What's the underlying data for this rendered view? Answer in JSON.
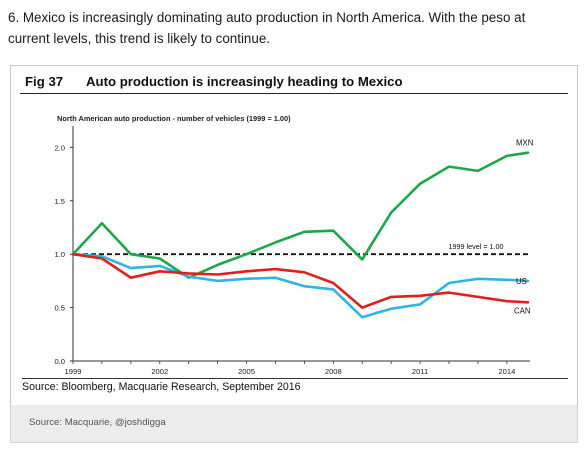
{
  "intro": {
    "line1": "6. Mexico is increasingly dominating auto production in North America. With the peso at",
    "line2": "current levels, this trend is likely to continue."
  },
  "figure": {
    "number": "Fig 37",
    "title": "Auto production is increasingly heading to Mexico",
    "source": "Source: Bloomberg, Macquarie Research, September 2016"
  },
  "footer": {
    "credit": "Source: Macquarie, @joshdigga"
  },
  "colors": {
    "MXN": "#1fa64b",
    "US": "#2eb5e6",
    "CAN": "#e0201b",
    "ref": "#111111"
  },
  "chart_data": {
    "type": "line",
    "title": "North American auto production - number of vehicles (1999 = 1.00)",
    "x": [
      1999,
      2000,
      2001,
      2002,
      2003,
      2004,
      2005,
      2006,
      2007,
      2008,
      2009,
      2010,
      2011,
      2012,
      2013,
      2014,
      2015
    ],
    "xticks": [
      "1999",
      "2002",
      "2005",
      "2008",
      "2011",
      "2014"
    ],
    "yticks": [
      "0.0",
      "0.5",
      "1.0",
      "1.5",
      "2.0"
    ],
    "ylim": [
      0,
      2.2
    ],
    "xlim": [
      1999,
      2014.8
    ],
    "reference": {
      "value": 1.0,
      "label": "1999 level = 1.00"
    },
    "series": [
      {
        "name": "MXN",
        "values": [
          1.0,
          1.29,
          1.0,
          0.96,
          0.78,
          0.9,
          1.0,
          1.11,
          1.21,
          1.22,
          0.95,
          1.39,
          1.66,
          1.82,
          1.78,
          1.92,
          1.95
        ]
      },
      {
        "name": "US",
        "values": [
          1.0,
          0.98,
          0.87,
          0.89,
          0.79,
          0.75,
          0.77,
          0.78,
          0.7,
          0.67,
          0.41,
          0.49,
          0.53,
          0.73,
          0.77,
          0.76,
          0.75
        ]
      },
      {
        "name": "CAN",
        "values": [
          1.0,
          0.96,
          0.78,
          0.84,
          0.82,
          0.81,
          0.84,
          0.86,
          0.83,
          0.73,
          0.5,
          0.6,
          0.61,
          0.64,
          0.6,
          0.56,
          0.55
        ]
      }
    ]
  }
}
